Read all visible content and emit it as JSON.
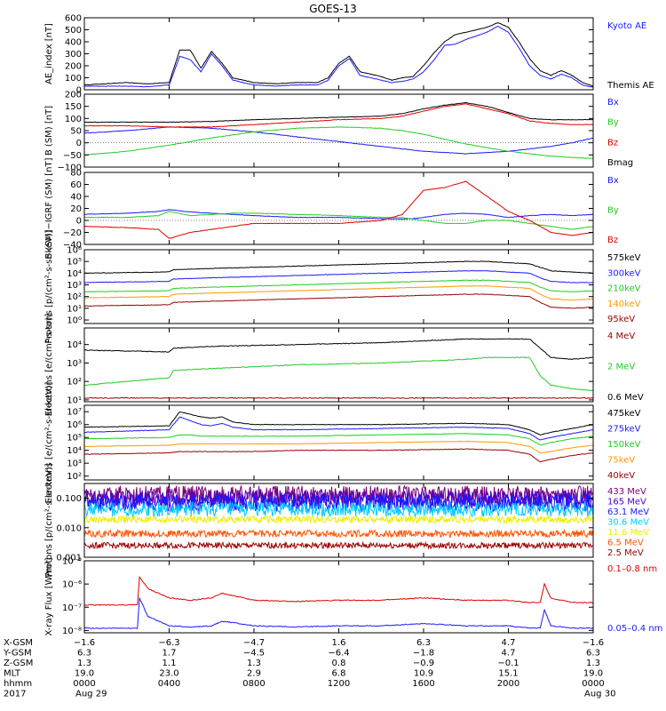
{
  "title": "GOES-13",
  "colors": {
    "black": "#000000",
    "blue": "#1a1aff",
    "red": "#e00000",
    "green": "#22cc22",
    "orange": "#ff9900",
    "darkred": "#990000",
    "cyan": "#00ccff",
    "yellow": "#eeee00",
    "violet": "#7a007a",
    "orangered": "#ff5500",
    "purple": "#4b00c8"
  },
  "chart_data": [
    {
      "type": "line",
      "panel": "ae",
      "ylabel": "AE_index [nT]",
      "ylim": [
        0,
        600
      ],
      "yscale": "linear",
      "ticks": [
        {
          "v": 0,
          "label": "0"
        },
        {
          "v": 100,
          "label": "100"
        },
        {
          "v": 200,
          "label": "200"
        },
        {
          "v": 300,
          "label": "300"
        },
        {
          "v": 400,
          "label": "400"
        },
        {
          "v": 500,
          "label": "500"
        },
        {
          "v": 600,
          "label": "600"
        }
      ],
      "x_hours": [
        0,
        2,
        3,
        4,
        4.5,
        5,
        5.5,
        6,
        6.5,
        7,
        8,
        9,
        10,
        11,
        11.5,
        12,
        12.5,
        13,
        14,
        14.5,
        15,
        15.5,
        16,
        16.5,
        17,
        17.5,
        18,
        19,
        19.5,
        20,
        20.5,
        21,
        21.5,
        22,
        22.5,
        23,
        23.5,
        24
      ],
      "series": [
        {
          "name": "Kyoto AE",
          "color": "blue",
          "values": [
            30,
            30,
            25,
            40,
            280,
            250,
            150,
            300,
            200,
            80,
            40,
            30,
            40,
            40,
            80,
            200,
            260,
            120,
            80,
            60,
            70,
            90,
            150,
            250,
            370,
            380,
            420,
            480,
            530,
            480,
            350,
            200,
            120,
            90,
            130,
            100,
            40,
            20
          ]
        },
        {
          "name": "Themis AE",
          "color": "black",
          "values": [
            40,
            60,
            50,
            60,
            330,
            330,
            180,
            320,
            220,
            100,
            60,
            50,
            60,
            60,
            100,
            220,
            280,
            150,
            110,
            80,
            100,
            110,
            200,
            310,
            400,
            460,
            480,
            520,
            560,
            520,
            400,
            260,
            160,
            120,
            160,
            120,
            60,
            30
          ]
        }
      ]
    },
    {
      "type": "line",
      "panel": "bsm",
      "ylabel": "B (SM) [nT]",
      "ylim": [
        -100,
        200
      ],
      "yscale": "linear",
      "ticks": [
        {
          "v": -100,
          "label": "−100"
        },
        {
          "v": -50,
          "label": "−50"
        },
        {
          "v": 0,
          "label": "0"
        },
        {
          "v": 50,
          "label": "50"
        },
        {
          "v": 100,
          "label": "100"
        },
        {
          "v": 150,
          "label": "150"
        },
        {
          "v": 200,
          "label": "200"
        }
      ],
      "x_hours": [
        0,
        2,
        4,
        6,
        8,
        10,
        12,
        14,
        15,
        16,
        17,
        18,
        19,
        20,
        21,
        22,
        23,
        24
      ],
      "series": [
        {
          "name": "Bx",
          "color": "blue",
          "values": [
            40,
            50,
            65,
            60,
            45,
            25,
            5,
            -15,
            -25,
            -35,
            -40,
            -45,
            -40,
            -35,
            -25,
            -15,
            0,
            20
          ]
        },
        {
          "name": "By",
          "color": "green",
          "values": [
            -50,
            -35,
            -10,
            20,
            45,
            60,
            65,
            60,
            50,
            35,
            15,
            -5,
            -20,
            -35,
            -45,
            -55,
            -60,
            -65
          ]
        },
        {
          "name": "Bz",
          "color": "red",
          "values": [
            70,
            70,
            65,
            65,
            75,
            85,
            95,
            100,
            110,
            130,
            150,
            160,
            140,
            120,
            90,
            80,
            75,
            75
          ]
        },
        {
          "name": "Bmag",
          "color": "black",
          "values": [
            85,
            85,
            85,
            88,
            95,
            100,
            105,
            110,
            120,
            140,
            155,
            165,
            150,
            125,
            100,
            95,
            95,
            95
          ]
        }
      ]
    },
    {
      "type": "line",
      "panel": "bigrf",
      "ylabel": "B (SM)−IGRF (SM) [nT]",
      "ylim": [
        -40,
        80
      ],
      "yscale": "linear",
      "ticks": [
        {
          "v": -40,
          "label": "−40"
        },
        {
          "v": -20,
          "label": "−20"
        },
        {
          "v": 0,
          "label": "0"
        },
        {
          "v": 20,
          "label": "20"
        },
        {
          "v": 40,
          "label": "40"
        },
        {
          "v": 60,
          "label": "60"
        },
        {
          "v": 80,
          "label": "80"
        }
      ],
      "x_hours": [
        0,
        2,
        3.5,
        4,
        5,
        6,
        7,
        8,
        10,
        12,
        14,
        15,
        15.5,
        16,
        17,
        18,
        19,
        20,
        21,
        22,
        23,
        24
      ],
      "series": [
        {
          "name": "Bx",
          "color": "blue",
          "values": [
            10,
            12,
            15,
            18,
            14,
            12,
            10,
            8,
            5,
            5,
            3,
            2,
            3,
            5,
            10,
            12,
            10,
            5,
            8,
            10,
            8,
            10
          ]
        },
        {
          "name": "By",
          "color": "green",
          "values": [
            5,
            5,
            8,
            15,
            8,
            10,
            12,
            12,
            10,
            8,
            5,
            5,
            2,
            0,
            -5,
            -5,
            0,
            0,
            -5,
            -10,
            -15,
            -10
          ]
        },
        {
          "name": "Bz",
          "color": "red",
          "values": [
            -10,
            -12,
            -15,
            -30,
            -20,
            -15,
            -10,
            -5,
            -5,
            -5,
            0,
            10,
            30,
            50,
            55,
            65,
            40,
            15,
            0,
            -20,
            -25,
            -20
          ]
        }
      ]
    },
    {
      "type": "line",
      "panel": "protons",
      "ylabel": "Protons [p/(cm²-s-sr-keV)]",
      "ylim": [
        -0.3,
        6
      ],
      "yscale": "log10",
      "ticks": [
        {
          "v": 0,
          "label": "10⁰"
        },
        {
          "v": 1,
          "label": "10¹"
        },
        {
          "v": 2,
          "label": "10²"
        },
        {
          "v": 3,
          "label": "10³"
        },
        {
          "v": 4,
          "label": "10⁴"
        },
        {
          "v": 5,
          "label": "10⁵"
        },
        {
          "v": 6,
          "label": "10⁶"
        }
      ],
      "x_hours": [
        0,
        4,
        4.2,
        6,
        10,
        14,
        16,
        18,
        19,
        20,
        21,
        21.5,
        22,
        23,
        24
      ],
      "series": [
        {
          "name": "575keV",
          "color": "black",
          "values": [
            4.0,
            4.1,
            4.3,
            4.4,
            4.6,
            4.8,
            4.9,
            5.0,
            5.0,
            4.9,
            4.8,
            4.5,
            4.2,
            4.1,
            4.0
          ]
        },
        {
          "name": "300keV",
          "color": "blue",
          "values": [
            3.2,
            3.3,
            3.5,
            3.6,
            3.8,
            4.0,
            4.1,
            4.2,
            4.2,
            4.1,
            4.0,
            3.6,
            3.3,
            3.2,
            3.2
          ]
        },
        {
          "name": "210keV",
          "color": "green",
          "values": [
            2.4,
            2.5,
            2.7,
            2.8,
            3.0,
            3.2,
            3.3,
            3.4,
            3.4,
            3.3,
            3.2,
            2.8,
            2.5,
            2.4,
            2.5
          ]
        },
        {
          "name": "140keV",
          "color": "orange",
          "values": [
            1.9,
            2.0,
            2.2,
            2.3,
            2.5,
            2.7,
            2.8,
            2.9,
            2.9,
            2.8,
            2.7,
            2.2,
            1.8,
            1.7,
            1.8
          ]
        },
        {
          "name": "95keV",
          "color": "darkred",
          "values": [
            1.2,
            1.3,
            1.5,
            1.6,
            1.8,
            2.0,
            2.1,
            2.2,
            2.2,
            2.1,
            2.0,
            1.5,
            1.1,
            1.0,
            1.1
          ]
        }
      ]
    },
    {
      "type": "line",
      "panel": "electrons_mev",
      "ylabel": "Electrons [e/(cm²-s-sr)]",
      "ylim": [
        0.9,
        4.9
      ],
      "yscale": "log10",
      "ticks": [
        {
          "v": 1,
          "label": "10¹"
        },
        {
          "v": 2,
          "label": "10²"
        },
        {
          "v": 3,
          "label": "10³"
        },
        {
          "v": 4,
          "label": "10⁴"
        }
      ],
      "x_hours": [
        0,
        4,
        4.2,
        6,
        10,
        14,
        16,
        18,
        19,
        20,
        21,
        21.5,
        22,
        23,
        24
      ],
      "series": [
        {
          "name": "4 MeV",
          "color": "darkred",
          "values": [
            1.1,
            1.1,
            1.1,
            1.1,
            1.1,
            1.1,
            1.1,
            1.1,
            1.1,
            1.1,
            1.1,
            1.1,
            1.1,
            1.1,
            1.1
          ]
        },
        {
          "name": "2 MeV",
          "color": "green",
          "values": [
            1.8,
            2.2,
            2.6,
            2.7,
            2.9,
            3.0,
            3.1,
            3.2,
            3.3,
            3.3,
            3.3,
            2.3,
            1.8,
            1.6,
            1.5
          ]
        },
        {
          "name": "0.6 MeV",
          "color": "black",
          "values": [
            3.7,
            3.6,
            3.8,
            3.9,
            4.0,
            4.1,
            4.2,
            4.3,
            4.3,
            4.3,
            4.3,
            3.8,
            3.3,
            3.2,
            3.3
          ]
        }
      ]
    },
    {
      "type": "line",
      "panel": "electrons_kev",
      "ylabel": "Electrons [e/(cm²-s-sr-keV)]",
      "ylim": [
        1.7,
        7.5
      ],
      "yscale": "log10",
      "ticks": [
        {
          "v": 2,
          "label": "10²"
        },
        {
          "v": 3,
          "label": "10³"
        },
        {
          "v": 4,
          "label": "10⁴"
        },
        {
          "v": 5,
          "label": "10⁵"
        },
        {
          "v": 6,
          "label": "10⁶"
        },
        {
          "v": 7,
          "label": "10⁷"
        }
      ],
      "x_hours": [
        0,
        4,
        4.5,
        5,
        5.5,
        6,
        6.5,
        7,
        8,
        10,
        14,
        18,
        20,
        21,
        21.5,
        22,
        23,
        24
      ],
      "series": [
        {
          "name": "475keV",
          "color": "black",
          "values": [
            5.8,
            5.9,
            7.0,
            6.8,
            6.6,
            6.5,
            6.6,
            6.2,
            6.0,
            6.0,
            6.0,
            6.1,
            6.0,
            5.6,
            5.2,
            5.4,
            5.7,
            6.0
          ]
        },
        {
          "name": "275keV",
          "color": "blue",
          "values": [
            5.4,
            5.6,
            6.6,
            6.3,
            6.0,
            5.9,
            6.1,
            5.8,
            5.6,
            5.6,
            5.7,
            5.8,
            5.7,
            5.3,
            4.8,
            5.0,
            5.3,
            5.6
          ]
        },
        {
          "name": "150keV",
          "color": "green",
          "values": [
            4.9,
            5.0,
            5.2,
            5.2,
            5.1,
            5.1,
            5.1,
            5.1,
            5.1,
            5.1,
            5.2,
            5.3,
            5.2,
            4.9,
            4.4,
            4.6,
            4.9,
            5.1
          ]
        },
        {
          "name": "75keV",
          "color": "orange",
          "values": [
            4.3,
            4.4,
            4.5,
            4.5,
            4.5,
            4.5,
            4.5,
            4.5,
            4.5,
            4.5,
            4.6,
            4.7,
            4.6,
            4.3,
            3.8,
            3.9,
            4.2,
            4.4
          ]
        },
        {
          "name": "40keV",
          "color": "darkred",
          "values": [
            3.7,
            3.8,
            3.9,
            3.9,
            3.9,
            3.9,
            3.9,
            3.9,
            3.9,
            4.0,
            4.0,
            4.1,
            4.0,
            3.7,
            3.1,
            3.3,
            3.6,
            3.8
          ]
        }
      ]
    },
    {
      "type": "line",
      "panel": "protons_mev",
      "ylabel": "Protons [p/(cm²-s-sr-keV)]",
      "ylim": [
        -3,
        -0.5
      ],
      "yscale": "log10",
      "ticks": [
        {
          "v": -3,
          "label": "0.001"
        },
        {
          "v": -2,
          "label": "0.010"
        },
        {
          "v": -1,
          "label": "0.100"
        }
      ],
      "series": [
        {
          "name": "433 MeV",
          "color": "violet",
          "level": -0.88,
          "noise": 0.3
        },
        {
          "name": "165 MeV",
          "color": "purple",
          "level": -1.02,
          "noise": 0.3
        },
        {
          "name": "63.1 MeV",
          "color": "blue",
          "level": -1.15,
          "noise": 0.3
        },
        {
          "name": "30.6 MeV",
          "color": "cyan",
          "level": -1.38,
          "noise": 0.25
        },
        {
          "name": "11.6 MeV",
          "color": "yellow",
          "level": -1.72,
          "noise": 0.12
        },
        {
          "name": "6.5 MeV",
          "color": "orangered",
          "level": -2.2,
          "noise": 0.12
        },
        {
          "name": "2.5 MeV",
          "color": "darkred",
          "level": -2.6,
          "noise": 0.1
        }
      ]
    },
    {
      "type": "line",
      "panel": "xray",
      "ylabel": "X-ray Flux [W/m²]",
      "ylim": [
        -8.1,
        -5
      ],
      "yscale": "log10",
      "ticks": [
        {
          "v": -8,
          "label": "10⁻⁸"
        },
        {
          "v": -7,
          "label": "10⁻⁷"
        },
        {
          "v": -6,
          "label": "10⁻⁶"
        },
        {
          "v": -5,
          "label": "10⁻⁵"
        }
      ],
      "x_hours": [
        0,
        2.5,
        2.6,
        3,
        4,
        5,
        6,
        6.5,
        8,
        10,
        12,
        14,
        16,
        18,
        20,
        21,
        21.5,
        21.7,
        22,
        23,
        24
      ],
      "series": [
        {
          "name": "0.1–0.8 nm",
          "color": "red",
          "values": [
            -6.9,
            -6.9,
            -5.7,
            -6.2,
            -6.6,
            -6.7,
            -6.6,
            -6.4,
            -6.7,
            -6.75,
            -6.7,
            -6.7,
            -6.6,
            -6.7,
            -6.7,
            -6.8,
            -6.8,
            -6.0,
            -6.6,
            -6.8,
            -6.8
          ]
        },
        {
          "name": "0.05–0.4 nm",
          "color": "blue",
          "values": [
            -7.9,
            -7.9,
            -6.6,
            -7.4,
            -7.8,
            -7.85,
            -7.8,
            -7.6,
            -7.8,
            -7.85,
            -7.8,
            -7.8,
            -7.7,
            -7.8,
            -7.8,
            -7.9,
            -7.9,
            -7.1,
            -7.8,
            -7.9,
            -7.9
          ]
        }
      ]
    }
  ],
  "x_axis": {
    "row_labels": [
      "X-GSM",
      "Y-GSM",
      "Z-GSM",
      "MLT",
      "hhmm",
      "2017"
    ],
    "columns": [
      {
        "hour": 0,
        "values": [
          "−1.6",
          "6.3",
          "1.3",
          "19.0",
          "0000",
          "Aug 29"
        ]
      },
      {
        "hour": 4,
        "values": [
          "−6.3",
          "1.7",
          "1.1",
          "23.0",
          "0400",
          ""
        ]
      },
      {
        "hour": 8,
        "values": [
          "−4.7",
          "−4.5",
          "1.3",
          "2.9",
          "0800",
          ""
        ]
      },
      {
        "hour": 12,
        "values": [
          "1.6",
          "−6.4",
          "0.8",
          "6.8",
          "1200",
          ""
        ]
      },
      {
        "hour": 16,
        "values": [
          "6.3",
          "−1.8",
          "−0.9",
          "10.9",
          "1600",
          ""
        ]
      },
      {
        "hour": 20,
        "values": [
          "4.7",
          "4.7",
          "−0.1",
          "15.1",
          "2000",
          ""
        ]
      },
      {
        "hour": 24,
        "values": [
          "−1.6",
          "6.3",
          "1.3",
          "19.0",
          "0000",
          "Aug 30"
        ]
      }
    ]
  }
}
